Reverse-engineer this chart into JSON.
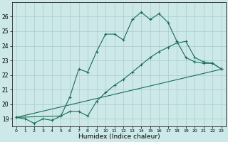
{
  "xlabel": "Humidex (Indice chaleur)",
  "background_color": "#cce8e8",
  "grid_color": "#aacccc",
  "line_color": "#1a6b5a",
  "xlim": [
    -0.5,
    23.5
  ],
  "ylim": [
    18.5,
    27.0
  ],
  "yticks": [
    19,
    20,
    21,
    22,
    23,
    24,
    25,
    26
  ],
  "xticks": [
    0,
    1,
    2,
    3,
    4,
    5,
    6,
    7,
    8,
    9,
    10,
    11,
    12,
    13,
    14,
    15,
    16,
    17,
    18,
    19,
    20,
    21,
    22,
    23
  ],
  "line1_x": [
    0,
    1,
    2,
    3,
    4,
    5,
    6,
    7,
    8,
    9,
    10,
    11,
    12,
    13,
    14,
    15,
    16,
    17,
    18,
    19,
    20,
    21,
    22,
    23
  ],
  "line1_y": [
    19.1,
    19.0,
    18.7,
    19.0,
    18.9,
    19.2,
    20.5,
    22.4,
    22.2,
    23.6,
    24.8,
    24.8,
    24.4,
    25.8,
    26.3,
    25.8,
    26.2,
    25.6,
    24.3,
    23.2,
    22.9,
    22.8,
    22.8,
    22.4
  ],
  "line2_x": [
    0,
    23
  ],
  "line2_y": [
    19.1,
    22.4
  ],
  "line3_x": [
    0,
    5,
    6,
    7,
    8,
    9,
    10,
    11,
    12,
    13,
    14,
    15,
    16,
    17,
    18,
    19,
    20,
    21,
    22,
    23
  ],
  "line3_y": [
    19.1,
    19.2,
    19.5,
    19.5,
    19.2,
    20.2,
    20.8,
    21.3,
    21.7,
    22.2,
    22.7,
    23.2,
    23.6,
    23.9,
    24.2,
    24.3,
    23.2,
    22.9,
    22.8,
    22.4
  ],
  "marker": "+",
  "markersize": 3,
  "linewidth": 0.8
}
